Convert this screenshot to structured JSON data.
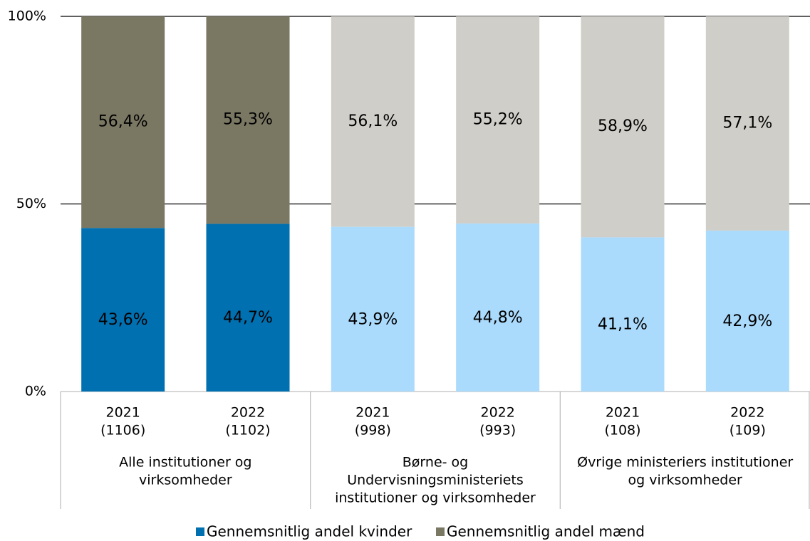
{
  "chart_data": {
    "type": "stacked_bar",
    "categories": [
      "2021",
      "2022",
      "2021",
      "2022",
      "2021",
      "2022"
    ],
    "category_counts": [
      "(1106)",
      "(1102)",
      "(998)",
      "(993)",
      "(108)",
      "(109)"
    ],
    "groups": [
      [
        "Alle institutioner og",
        "virksomheder"
      ],
      [
        "Børne- og",
        "Undervisningsministeriets",
        "institutioner og virksomheder"
      ],
      [
        "Øvrige ministeriers institutioner",
        "og virksomheder"
      ]
    ],
    "series": [
      {
        "name": "Gennemsnitlig andel kvinder",
        "color": "#0070b0",
        "values": [
          43.6,
          44.7,
          43.9,
          44.8,
          41.1,
          42.9
        ],
        "value_labels": [
          "43,6%",
          "44,7%",
          "43,9%",
          "44,8%",
          "41,1%",
          "42,9%"
        ],
        "colors": [
          "#0070b0",
          "#0070b0",
          "#abdbfc",
          "#abdbfc",
          "#abdbfc",
          "#abdbfc"
        ],
        "label_colors": [
          "#ffffff",
          "#ffffff",
          "#000000",
          "#000000",
          "#000000",
          "#000000"
        ]
      },
      {
        "name": "Gennemsnitlig andel mænd",
        "color": "#7a7763",
        "values": [
          56.4,
          55.3,
          56.1,
          55.2,
          58.9,
          57.1
        ],
        "value_labels": [
          "56,4%",
          "55,3%",
          "56,1%",
          "55,2%",
          "58,9%",
          "57,1%"
        ],
        "colors": [
          "#7a7763",
          "#7a7763",
          "#d0cec8",
          "#d0cec8",
          "#d0cec8",
          "#d0cec8"
        ],
        "label_colors": [
          "#ffffff",
          "#ffffff",
          "#000000",
          "#000000",
          "#000000",
          "#000000"
        ]
      }
    ],
    "ylim": [
      0,
      100
    ],
    "yticks": [
      {
        "value": 0,
        "label": "0%"
      },
      {
        "value": 50,
        "label": "50%"
      },
      {
        "value": 100,
        "label": "100%"
      }
    ],
    "grid": true
  }
}
